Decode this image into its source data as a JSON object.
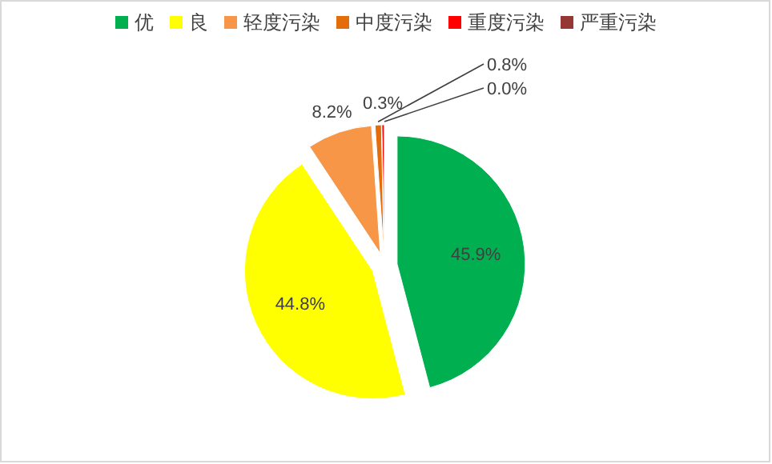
{
  "chart_data": {
    "type": "pie",
    "categories": [
      "优",
      "良",
      "轻度污染",
      "中度污染",
      "重度污染",
      "严重污染"
    ],
    "values": [
      45.9,
      44.8,
      8.2,
      0.8,
      0.3,
      0.0
    ],
    "colors": [
      "#00b050",
      "#ffff00",
      "#f79646",
      "#e46c0a",
      "#ff0000",
      "#953735"
    ],
    "value_labels": [
      "45.9%",
      "44.8%",
      "8.2%",
      "0.8%",
      "0.3%",
      "0.0%"
    ],
    "legend": "top"
  }
}
